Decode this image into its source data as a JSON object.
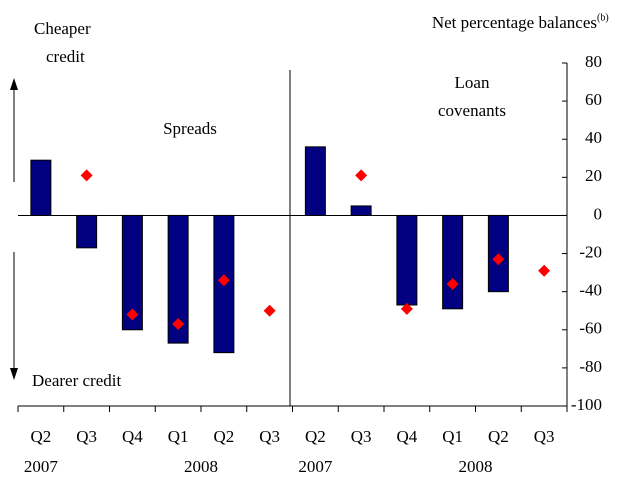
{
  "chart_data": {
    "type": "bar",
    "y_label": "Net percentage balances",
    "y_label_note": "(b)",
    "annotations": {
      "cheaper_credit": [
        "Cheaper",
        "credit"
      ],
      "dearer_credit": "Dearer credit",
      "spreads": "Spreads",
      "loan_covenants": [
        "Loan",
        "covenants"
      ]
    },
    "categories": [
      "Q2",
      "Q3",
      "Q4",
      "Q1",
      "Q2",
      "Q3",
      "Q2",
      "Q3",
      "Q4",
      "Q1",
      "Q2",
      "Q3"
    ],
    "year_labels": [
      "2007",
      "2008",
      "2007",
      "2008"
    ],
    "series": [
      {
        "type": "bar",
        "color": "#000080",
        "values": [
          29,
          -17,
          -60,
          -67,
          -72,
          null,
          36,
          5,
          -47,
          -49,
          -40,
          null
        ]
      },
      {
        "type": "scatter",
        "color": "#ff0000",
        "values": [
          null,
          21,
          -52,
          -57,
          -34,
          -50,
          null,
          21,
          -49,
          -36,
          -23,
          -29
        ]
      }
    ],
    "ylim": [
      -100,
      80
    ],
    "yticks": [
      -100,
      -80,
      -60,
      -40,
      -20,
      0,
      20,
      40,
      60,
      80
    ]
  }
}
